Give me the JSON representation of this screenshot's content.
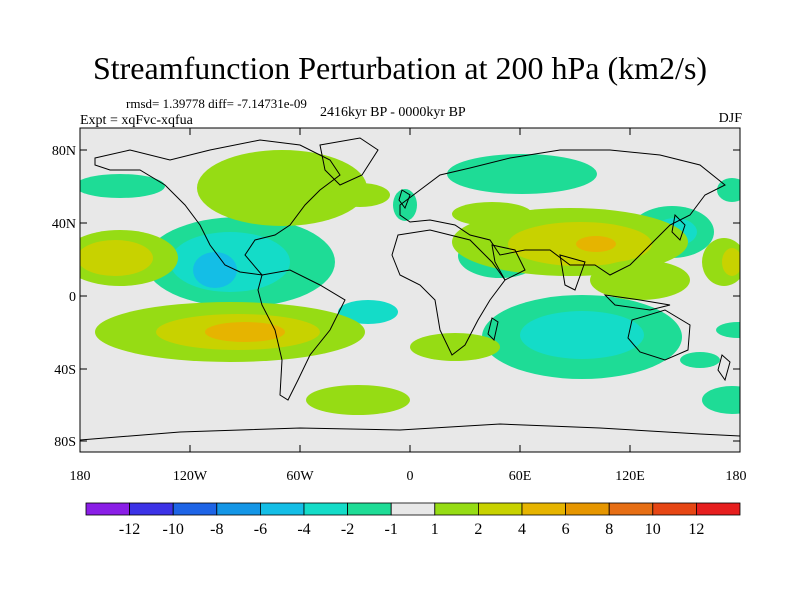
{
  "title": "Streamfunction Perturbation at 200 hPa (km2/s)",
  "stats": "rmsd= 1.39778  diff= -7.14731e-09",
  "experiment": "Expt = xqFvc-xqfua",
  "period": "2416kyr BP - 0000kyr BP",
  "season": "DJF",
  "map": {
    "y_ticks": [
      "80N",
      "40N",
      "0",
      "40S",
      "80S"
    ],
    "x_ticks": [
      "180",
      "120W",
      "60W",
      "0",
      "60E",
      "120E",
      "180"
    ],
    "colors": {
      "land_outline": "#000000",
      "ocean_bg": "#e8e8e8"
    }
  },
  "colorbar": {
    "labels": [
      "-12",
      "-10",
      "-8",
      "-6",
      "-4",
      "-2",
      "-1",
      "1",
      "2",
      "4",
      "6",
      "8",
      "10",
      "12"
    ],
    "colors": [
      "#8a1ee6",
      "#3c32e6",
      "#1e64e6",
      "#1496e6",
      "#14bee6",
      "#14dcc8",
      "#1edc96",
      "#e8e8e8",
      "#96dc14",
      "#c8d200",
      "#e6b400",
      "#e69600",
      "#e66e14",
      "#e64614",
      "#e61e1e"
    ]
  },
  "contour_levels": [
    "-12",
    "-10",
    "-8",
    "-6",
    "-4",
    "-2",
    "-1",
    "1",
    "2",
    "4",
    "6",
    "8",
    "10",
    "12"
  ]
}
